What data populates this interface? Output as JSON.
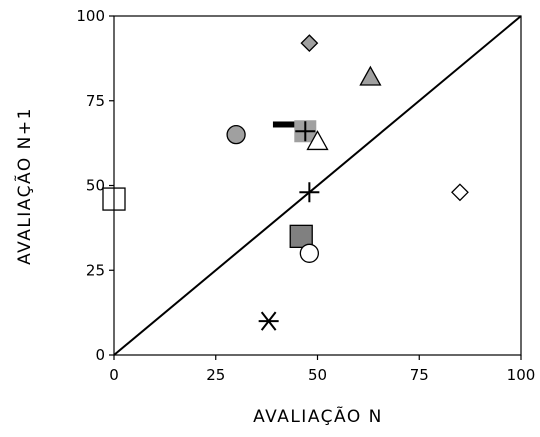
{
  "chart_data": {
    "type": "scatter",
    "xlabel": "AVALIAÇÃO N",
    "ylabel": "AVALIAÇÃO N+1",
    "xlim": [
      0,
      100
    ],
    "ylim": [
      0,
      100
    ],
    "x_ticks": [
      0,
      25,
      50,
      75,
      100
    ],
    "y_ticks": [
      0,
      25,
      50,
      75,
      100
    ],
    "grid": false,
    "legend": "none",
    "reference_line": {
      "from": [
        0,
        0
      ],
      "to": [
        100,
        100
      ]
    },
    "points": [
      {
        "x": 48,
        "y": 92,
        "marker": "diamond",
        "fill": "#a0a0a0"
      },
      {
        "x": 63,
        "y": 82,
        "marker": "triangle",
        "fill": "#a0a0a0"
      },
      {
        "x": 30,
        "y": 65,
        "marker": "circle",
        "fill": "#a0a0a0"
      },
      {
        "x": 42,
        "y": 68,
        "marker": "dash",
        "fill": "#000000"
      },
      {
        "x": 47,
        "y": 66,
        "marker": "square",
        "fill": "#a0a0a0"
      },
      {
        "x": 47,
        "y": 66,
        "marker": "plus",
        "fill": "#000000"
      },
      {
        "x": 50,
        "y": 63,
        "marker": "triangle",
        "fill": "#ffffff"
      },
      {
        "x": 48,
        "y": 48,
        "marker": "plus",
        "fill": "#000000"
      },
      {
        "x": 0,
        "y": 46,
        "marker": "square",
        "fill": "#ffffff"
      },
      {
        "x": 85,
        "y": 48,
        "marker": "diamond",
        "fill": "#ffffff"
      },
      {
        "x": 46,
        "y": 35,
        "marker": "square",
        "fill": "#808080"
      },
      {
        "x": 48,
        "y": 30,
        "marker": "circle",
        "fill": "#ffffff"
      },
      {
        "x": 38,
        "y": 10,
        "marker": "asterisk",
        "fill": "#000000"
      }
    ]
  }
}
